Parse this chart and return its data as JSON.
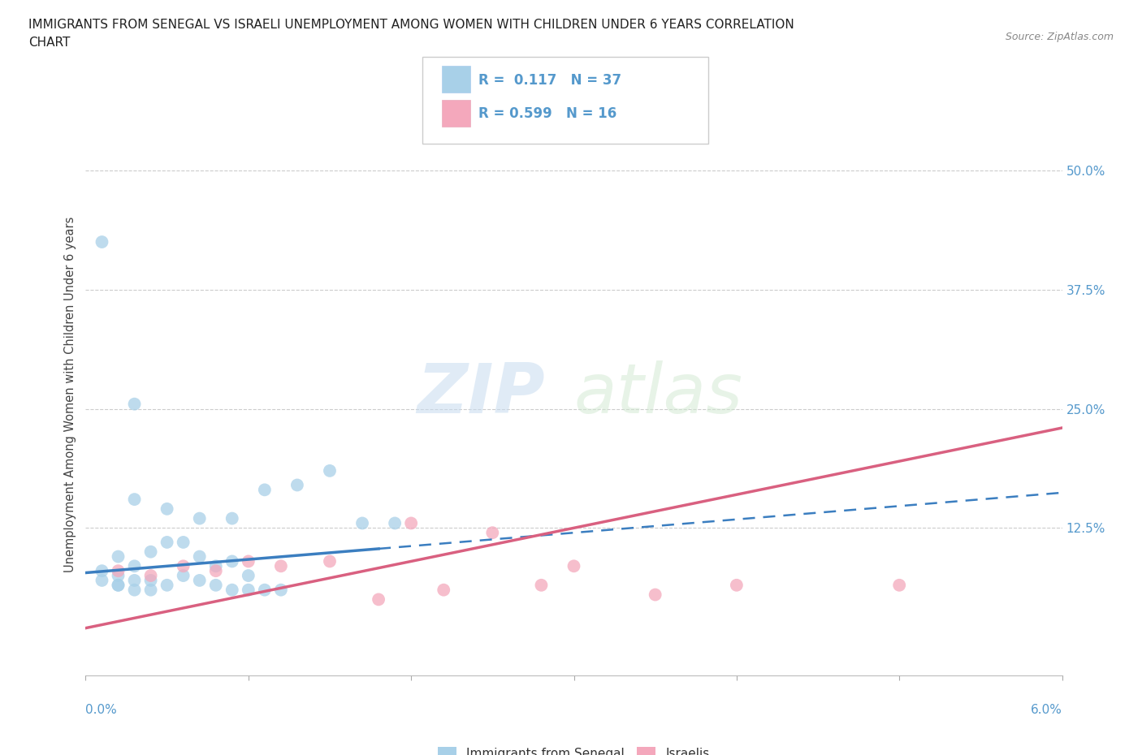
{
  "title_line1": "IMMIGRANTS FROM SENEGAL VS ISRAELI UNEMPLOYMENT AMONG WOMEN WITH CHILDREN UNDER 6 YEARS CORRELATION",
  "title_line2": "CHART",
  "source": "Source: ZipAtlas.com",
  "ylabel": "Unemployment Among Women with Children Under 6 years",
  "ytick_labels": [
    "12.5%",
    "25.0%",
    "37.5%",
    "50.0%"
  ],
  "ytick_values": [
    0.125,
    0.25,
    0.375,
    0.5
  ],
  "xmin": 0.0,
  "xmax": 0.06,
  "ymin": -0.03,
  "ymax": 0.56,
  "blue_color": "#A8D0E8",
  "pink_color": "#F4A8BC",
  "blue_line_color": "#3B7EC0",
  "pink_line_color": "#D96080",
  "R_blue": 0.117,
  "N_blue": 37,
  "R_pink": 0.599,
  "N_pink": 16,
  "watermark_ZIP": "ZIP",
  "watermark_atlas": "atlas",
  "blue_scatter_x": [
    0.002,
    0.003,
    0.004,
    0.005,
    0.006,
    0.007,
    0.008,
    0.009,
    0.01,
    0.011,
    0.002,
    0.003,
    0.004,
    0.005,
    0.006,
    0.007,
    0.008,
    0.009,
    0.01,
    0.012,
    0.003,
    0.005,
    0.007,
    0.009,
    0.011,
    0.013,
    0.015,
    0.017,
    0.019,
    0.003,
    0.001,
    0.002,
    0.003,
    0.004,
    0.001,
    0.002,
    0.001
  ],
  "blue_scatter_y": [
    0.065,
    0.06,
    0.06,
    0.065,
    0.075,
    0.07,
    0.065,
    0.06,
    0.06,
    0.06,
    0.095,
    0.085,
    0.1,
    0.11,
    0.11,
    0.095,
    0.085,
    0.09,
    0.075,
    0.06,
    0.155,
    0.145,
    0.135,
    0.135,
    0.165,
    0.17,
    0.185,
    0.13,
    0.13,
    0.255,
    0.08,
    0.075,
    0.07,
    0.07,
    0.07,
    0.065,
    0.425
  ],
  "pink_scatter_x": [
    0.002,
    0.004,
    0.006,
    0.008,
    0.01,
    0.012,
    0.015,
    0.02,
    0.025,
    0.03,
    0.035,
    0.04,
    0.05,
    0.028,
    0.018,
    0.022
  ],
  "pink_scatter_y": [
    0.08,
    0.075,
    0.085,
    0.08,
    0.09,
    0.085,
    0.09,
    0.13,
    0.12,
    0.085,
    0.055,
    0.065,
    0.065,
    0.065,
    0.05,
    0.06
  ]
}
